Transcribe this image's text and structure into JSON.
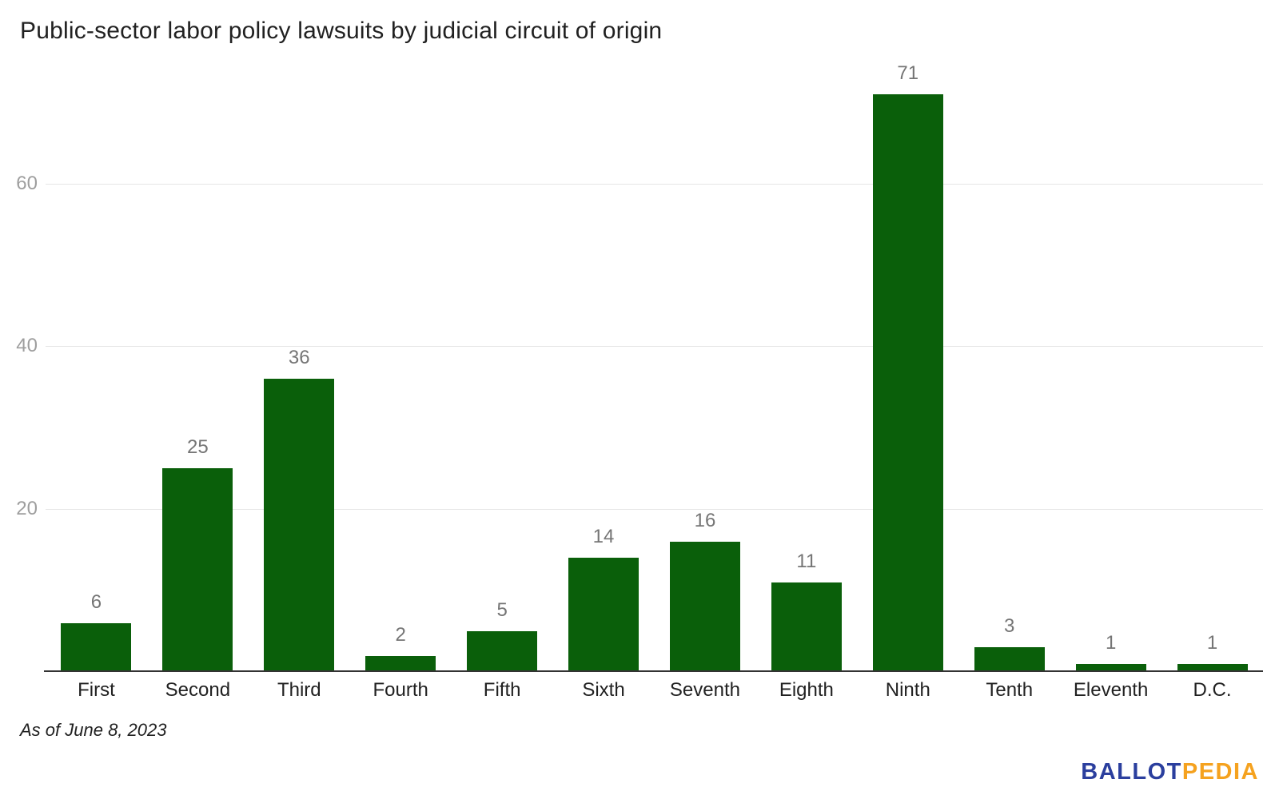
{
  "header": {
    "title": "Public-sector labor policy lawsuits by judicial circuit of origin"
  },
  "footer": {
    "as_of": "As of June 8, 2023",
    "logo": {
      "part1": "BALLOT",
      "part2": "PEDIA",
      "part1_color": "#2b3f9e",
      "part2_color": "#f5a21f"
    }
  },
  "chart_data": {
    "type": "bar",
    "title": "Public-sector labor policy lawsuits by judicial circuit of origin",
    "categories": [
      "First",
      "Second",
      "Third",
      "Fourth",
      "Fifth",
      "Sixth",
      "Seventh",
      "Eighth",
      "Ninth",
      "Tenth",
      "Eleventh",
      "D.C."
    ],
    "values": [
      6,
      25,
      36,
      2,
      5,
      14,
      16,
      11,
      71,
      3,
      1,
      1
    ],
    "xlabel": "",
    "ylabel": "",
    "yticks": [
      20,
      40,
      60
    ],
    "ylim": [
      0,
      77
    ],
    "grid": true,
    "legend": "none",
    "bar_color": "#0a5f0a",
    "gridline_color": "#e6e6e6",
    "axis_line_color": "#333333",
    "value_label_color": "#757575",
    "ytick_label_color": "#9e9e9e",
    "category_label_color": "#212121"
  }
}
